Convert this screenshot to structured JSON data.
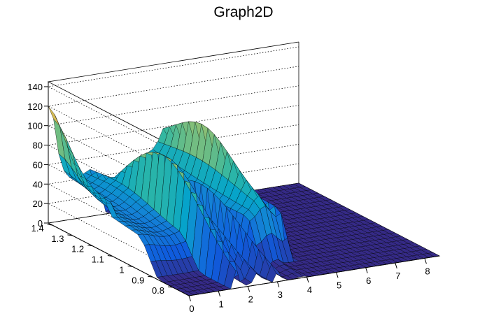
{
  "chart_data": {
    "type": "surface",
    "title": "Graph2D",
    "x_ticks": [
      "0",
      "1",
      "2",
      "3",
      "4",
      "5",
      "6",
      "7",
      "8"
    ],
    "y_ticks": [
      "0.8",
      "0.9",
      "1",
      "1.1",
      "1.2",
      "1.3",
      "1.4"
    ],
    "z_ticks": [
      "0",
      "20",
      "40",
      "60",
      "80",
      "100",
      "120",
      "140"
    ],
    "xlim": [
      0,
      8.5
    ],
    "ylim": [
      0.72,
      1.42
    ],
    "zlim": [
      0,
      145
    ],
    "grid": true,
    "palette": [
      "#352a87",
      "#0f5cdd",
      "#1481d6",
      "#06a4ca",
      "#2eb7a4",
      "#87bf77",
      "#d1bb59",
      "#fec832",
      "#f9fb0e"
    ],
    "features": {
      "left_wall_peak": 110,
      "left_plateau": 50,
      "ridge_a_peak": 108,
      "ridge_b_peak": 67,
      "ridge_c_peak": 67,
      "right_block_peak": 104,
      "right_block_level": 60,
      "floor_level": 0
    }
  }
}
